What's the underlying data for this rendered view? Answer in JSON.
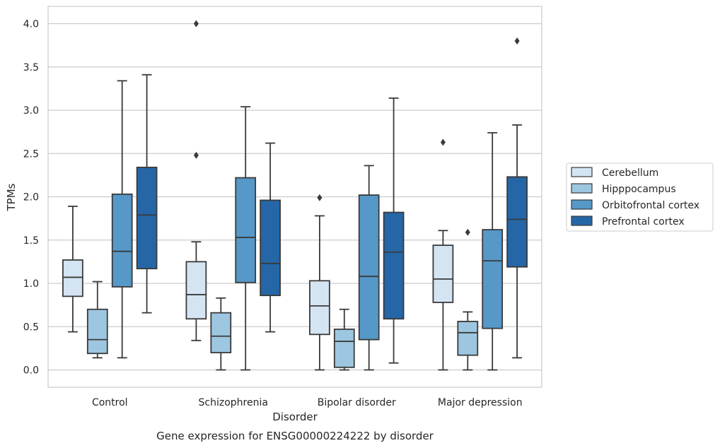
{
  "chart_data": {
    "type": "box",
    "xlabel": "Disorder",
    "ylabel": "TPMs",
    "caption": "Gene expression for ENSG00000224222 by disorder",
    "ylim": [
      -0.2,
      4.2
    ],
    "yticks": [
      "0.0",
      "0.5",
      "1.0",
      "1.5",
      "2.0",
      "2.5",
      "3.0",
      "3.5",
      "4.0"
    ],
    "ytick_values": [
      0,
      0.5,
      1.0,
      1.5,
      2.0,
      2.5,
      3.0,
      3.5,
      4.0
    ],
    "grid": "horizontal",
    "legend_position": "right",
    "categories": [
      "Control",
      "Schizophrenia",
      "Bipolar disorder",
      "Major depression"
    ],
    "series": [
      {
        "name": "Cerebellum",
        "color": "#d4e4f3",
        "boxes": [
          {
            "whislo": 0.44,
            "q1": 0.85,
            "med": 1.07,
            "q3": 1.27,
            "whishi": 1.89,
            "fliers": []
          },
          {
            "whislo": 0.34,
            "q1": 0.59,
            "med": 0.87,
            "q3": 1.25,
            "whishi": 1.48,
            "fliers": [
              2.48,
              4.0
            ]
          },
          {
            "whislo": 0.0,
            "q1": 0.41,
            "med": 0.74,
            "q3": 1.03,
            "whishi": 1.78,
            "fliers": [
              1.99
            ]
          },
          {
            "whislo": 0.0,
            "q1": 0.78,
            "med": 1.05,
            "q3": 1.44,
            "whishi": 1.61,
            "fliers": [
              2.63
            ]
          }
        ]
      },
      {
        "name": "Hipppocampus",
        "color": "#9dc6e0",
        "boxes": [
          {
            "whislo": 0.14,
            "q1": 0.19,
            "med": 0.35,
            "q3": 0.7,
            "whishi": 1.02,
            "fliers": []
          },
          {
            "whislo": 0.0,
            "q1": 0.2,
            "med": 0.39,
            "q3": 0.66,
            "whishi": 0.83,
            "fliers": []
          },
          {
            "whislo": 0.0,
            "q1": 0.03,
            "med": 0.33,
            "q3": 0.47,
            "whishi": 0.7,
            "fliers": []
          },
          {
            "whislo": 0.0,
            "q1": 0.17,
            "med": 0.43,
            "q3": 0.56,
            "whishi": 0.67,
            "fliers": [
              1.59
            ]
          }
        ]
      },
      {
        "name": "Orbitofrontal cortex",
        "color": "#5698c8",
        "boxes": [
          {
            "whislo": 0.14,
            "q1": 0.96,
            "med": 1.37,
            "q3": 2.03,
            "whishi": 3.34,
            "fliers": []
          },
          {
            "whislo": 0.0,
            "q1": 1.01,
            "med": 1.53,
            "q3": 2.22,
            "whishi": 3.04,
            "fliers": []
          },
          {
            "whislo": 0.0,
            "q1": 0.35,
            "med": 1.08,
            "q3": 2.02,
            "whishi": 2.36,
            "fliers": []
          },
          {
            "whislo": 0.0,
            "q1": 0.48,
            "med": 1.26,
            "q3": 1.62,
            "whishi": 2.74,
            "fliers": []
          }
        ]
      },
      {
        "name": "Prefrontal cortex",
        "color": "#2566a7",
        "boxes": [
          {
            "whislo": 0.66,
            "q1": 1.17,
            "med": 1.79,
            "q3": 2.34,
            "whishi": 3.41,
            "fliers": []
          },
          {
            "whislo": 0.44,
            "q1": 0.86,
            "med": 1.23,
            "q3": 1.96,
            "whishi": 2.62,
            "fliers": []
          },
          {
            "whislo": 0.08,
            "q1": 0.59,
            "med": 1.36,
            "q3": 1.82,
            "whishi": 3.14,
            "fliers": []
          },
          {
            "whislo": 0.14,
            "q1": 1.19,
            "med": 1.74,
            "q3": 2.23,
            "whishi": 2.83,
            "fliers": [
              3.8
            ]
          }
        ]
      }
    ]
  }
}
